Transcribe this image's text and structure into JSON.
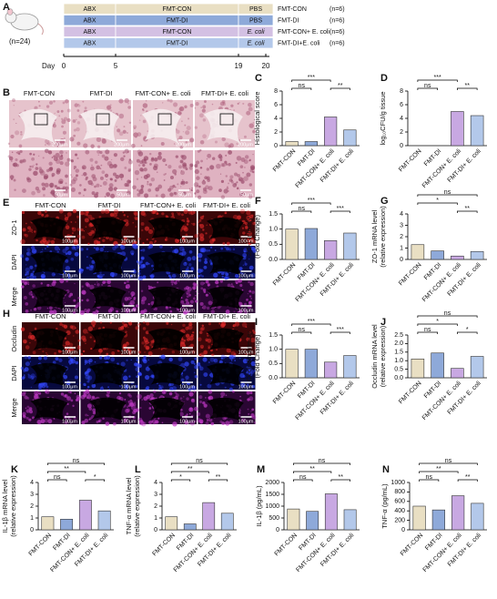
{
  "panel_A": {
    "label": "A",
    "n_total": "(n=24)",
    "rows": [
      {
        "segments": [
          "ABX",
          "FMT-CON",
          "PBS"
        ],
        "group": "FMT-CON",
        "n": "(n=6)",
        "color": "#e9dfc3"
      },
      {
        "segments": [
          "ABX",
          "FMT-DI",
          "PBS"
        ],
        "group": "FMT-DI",
        "n": "(n=6)",
        "color": "#8ea9d9"
      },
      {
        "segments": [
          "ABX",
          "FMT-CON",
          "E. coli"
        ],
        "group": "FMT-CON+ E. coli",
        "n": "(n=6)",
        "color": "#d3c0e3"
      },
      {
        "segments": [
          "ABX",
          "FMT-DI",
          "E. coli"
        ],
        "group": "FMT-DI+E. coli",
        "n": "(n=6)",
        "color": "#b3c8ea"
      }
    ],
    "day_label": "Day",
    "days": [
      "0",
      "5",
      "19",
      "20"
    ]
  },
  "panel_B": {
    "label": "B",
    "columns": [
      "FMT-CON",
      "FMT-DI",
      "FMT-CON+ E. coli",
      "FMT-DI+ E. coli"
    ],
    "scales": [
      "200μm",
      "50μm"
    ]
  },
  "panel_E": {
    "label": "E",
    "columns": [
      "FMT-CON",
      "FMT-DI",
      "FMT-CON+ E. coli",
      "FMT-DI+ E. coli"
    ],
    "rows": [
      "ZO-1",
      "DAPI",
      "Merge"
    ],
    "scale": "100μm"
  },
  "panel_H": {
    "label": "H",
    "columns": [
      "FMT-CON",
      "FMT-DI",
      "FMT-CON+ E. coli",
      "FMT-DI+ E. coli"
    ],
    "rows": [
      "Occludin",
      "DAPI",
      "Merge"
    ],
    "scale": "100μm"
  },
  "chart_data": [
    {
      "type": "bar",
      "label": "C",
      "ylabel": [
        "Histological score"
      ],
      "categories": [
        "FMT-CON",
        "FMT-DI",
        "FMT-CON+ E. coli",
        "FMT-DI+ E. coli"
      ],
      "values": [
        0.6,
        0.6,
        4.2,
        2.3
      ],
      "colors": [
        "#e9dfc3",
        "#8ea9d9",
        "#c8a8e2",
        "#b3c8ea"
      ],
      "ylim": [
        0,
        8
      ],
      "yticks": [
        0,
        2,
        4,
        6,
        8
      ],
      "comparisons": [
        {
          "from": "FMT-CON",
          "to": "FMT-DI",
          "label": "ns"
        },
        {
          "from": "FMT-CON+ E. coli",
          "to": "FMT-DI+ E. coli",
          "label": "**"
        },
        {
          "from": "FMT-CON",
          "to": "FMT-CON+ E. coli",
          "label": "***"
        }
      ]
    },
    {
      "type": "bar",
      "label": "D",
      "ylabel": [
        "log₁₀CFU/g tissue"
      ],
      "categories": [
        "FMT-CON",
        "FMT-DI",
        "FMT-CON+ E. coli",
        "FMT-DI+ E. coli"
      ],
      "values": [
        0,
        0,
        5,
        4.4
      ],
      "colors": [
        "#e9dfc3",
        "#8ea9d9",
        "#c8a8e2",
        "#b3c8ea"
      ],
      "ylim": [
        0,
        8
      ],
      "yticks": [
        0,
        2,
        4,
        6,
        8
      ],
      "comparisons": [
        {
          "from": "FMT-CON",
          "to": "FMT-DI",
          "label": "ns"
        },
        {
          "from": "FMT-CON+ E. coli",
          "to": "FMT-DI+ E. coli",
          "label": "**"
        },
        {
          "from": "FMT-CON",
          "to": "FMT-CON+ E. coli",
          "label": "***"
        }
      ]
    },
    {
      "type": "bar",
      "label": "F",
      "ylabel": [
        "ZO-1 intesity",
        "(Fold Change)"
      ],
      "categories": [
        "FMT-CON",
        "FMT-DI",
        "FMT-CON+ E. coli",
        "FMT-DI+ E. coli"
      ],
      "values": [
        1.0,
        1.02,
        0.62,
        0.87
      ],
      "colors": [
        "#e9dfc3",
        "#8ea9d9",
        "#c8a8e2",
        "#b3c8ea"
      ],
      "ylim": [
        0,
        1.5
      ],
      "yticks": [
        {
          "value": 0,
          "label": "0.0"
        },
        0.5,
        {
          "value": 1,
          "label": "1.0"
        },
        1.5
      ],
      "comparisons": [
        {
          "from": "FMT-CON",
          "to": "FMT-DI",
          "label": "ns"
        },
        {
          "from": "FMT-CON+ E. coli",
          "to": "FMT-DI+ E. coli",
          "label": "***"
        },
        {
          "from": "FMT-CON",
          "to": "FMT-CON+ E. coli",
          "label": "***"
        }
      ]
    },
    {
      "type": "bar",
      "label": "G",
      "ylabel": [
        "ZO-1 mRNA level",
        "(relative expression)"
      ],
      "categories": [
        "FMT-CON",
        "FMT-DI",
        "FMT-CON+ E. coli",
        "FMT-DI+ E. coli"
      ],
      "values": [
        1.3,
        0.75,
        0.3,
        0.7
      ],
      "colors": [
        "#e9dfc3",
        "#8ea9d9",
        "#c8a8e2",
        "#b3c8ea"
      ],
      "ylim": [
        0,
        4
      ],
      "yticks": [
        0,
        1,
        2,
        3,
        4
      ],
      "comparisons": [
        {
          "from": "FMT-CON+ E. coli",
          "to": "FMT-DI+ E. coli",
          "label": "**"
        },
        {
          "from": "FMT-CON",
          "to": "FMT-CON+ E. coli",
          "label": "*"
        },
        {
          "from": "FMT-CON",
          "to": "FMT-DI+ E. coli",
          "label": "ns"
        }
      ]
    },
    {
      "type": "bar",
      "label": "I",
      "ylabel": [
        "Occludin intesity",
        "(Fold Change)"
      ],
      "categories": [
        "FMT-CON",
        "FMT-DI",
        "FMT-CON+ E. coli",
        "FMT-DI+ E. coli"
      ],
      "values": [
        1.0,
        1.0,
        0.55,
        0.78
      ],
      "colors": [
        "#e9dfc3",
        "#8ea9d9",
        "#c8a8e2",
        "#b3c8ea"
      ],
      "ylim": [
        0,
        1.5
      ],
      "yticks": [
        {
          "value": 0,
          "label": "0.0"
        },
        0.5,
        {
          "value": 1,
          "label": "1.0"
        },
        1.5
      ],
      "comparisons": [
        {
          "from": "FMT-CON",
          "to": "FMT-DI",
          "label": "ns"
        },
        {
          "from": "FMT-CON+ E. coli",
          "to": "FMT-DI+ E. coli",
          "label": "***"
        },
        {
          "from": "FMT-CON",
          "to": "FMT-CON+ E. coli",
          "label": "***"
        }
      ]
    },
    {
      "type": "bar",
      "label": "J",
      "ylabel": [
        "Occludin mRNA level",
        "(relative expression)"
      ],
      "categories": [
        "FMT-CON",
        "FMT-DI",
        "FMT-CON+ E. coli",
        "FMT-DI+ E. coli"
      ],
      "values": [
        1.1,
        1.45,
        0.55,
        1.25
      ],
      "colors": [
        "#e9dfc3",
        "#8ea9d9",
        "#c8a8e2",
        "#b3c8ea"
      ],
      "ylim": [
        0,
        2.5
      ],
      "yticks": [
        {
          "value": 0,
          "label": "0.0"
        },
        0.5,
        {
          "value": 1,
          "label": "1.0"
        },
        1.5,
        {
          "value": 2,
          "label": "2.0"
        },
        2.5
      ],
      "comparisons": [
        {
          "from": "FMT-CON",
          "to": "FMT-DI",
          "label": "ns"
        },
        {
          "from": "FMT-CON+ E. coli",
          "to": "FMT-DI+ E. coli",
          "label": "*"
        },
        {
          "from": "FMT-CON",
          "to": "FMT-CON+ E. coli",
          "label": "*"
        },
        {
          "from": "FMT-CON",
          "to": "FMT-DI+ E. coli",
          "label": "ns"
        }
      ]
    },
    {
      "type": "bar",
      "label": "K",
      "ylabel": [
        "IL-1β mRNA level",
        "(relative expression)"
      ],
      "categories": [
        "FMT-CON",
        "FMT-DI",
        "FMT-CON+ E. coli",
        "FMT-DI+ E. coli"
      ],
      "values": [
        1.1,
        0.9,
        2.5,
        1.6
      ],
      "colors": [
        "#e9dfc3",
        "#8ea9d9",
        "#c8a8e2",
        "#b3c8ea"
      ],
      "ylim": [
        0,
        4
      ],
      "yticks": [
        0,
        1,
        2,
        3,
        4
      ],
      "comparisons": [
        {
          "from": "FMT-CON",
          "to": "FMT-DI",
          "label": "ns"
        },
        {
          "from": "FMT-CON+ E. coli",
          "to": "FMT-DI+ E. coli",
          "label": "*"
        },
        {
          "from": "FMT-CON",
          "to": "FMT-CON+ E. coli",
          "label": "**"
        },
        {
          "from": "FMT-CON",
          "to": "FMT-DI+ E. coli",
          "label": "ns"
        }
      ]
    },
    {
      "type": "bar",
      "label": "L",
      "ylabel": [
        "TNF-α mRNA level",
        "(relative expression)"
      ],
      "categories": [
        "FMT-CON",
        "FMT-DI",
        "FMT-CON+ E. coli",
        "FMT-DI+ E. coli"
      ],
      "values": [
        1.1,
        0.5,
        2.3,
        1.4
      ],
      "colors": [
        "#e9dfc3",
        "#8ea9d9",
        "#c8a8e2",
        "#b3c8ea"
      ],
      "ylim": [
        0,
        4
      ],
      "yticks": [
        0,
        1,
        2,
        3,
        4
      ],
      "comparisons": [
        {
          "from": "FMT-CON",
          "to": "FMT-DI",
          "label": "*"
        },
        {
          "from": "FMT-CON+ E. coli",
          "to": "FMT-DI+ E. coli",
          "label": "**"
        },
        {
          "from": "FMT-CON",
          "to": "FMT-CON+ E. coli",
          "label": "**"
        },
        {
          "from": "FMT-CON",
          "to": "FMT-DI+ E. coli",
          "label": "ns"
        }
      ]
    },
    {
      "type": "bar",
      "label": "M",
      "ylabel": [
        "IL-1β (pg/mL)"
      ],
      "categories": [
        "FMT-CON",
        "FMT-DI",
        "FMT-CON+ E. coli",
        "FMT-DI+ E. coli"
      ],
      "values": [
        880,
        780,
        1520,
        850
      ],
      "colors": [
        "#e9dfc3",
        "#8ea9d9",
        "#c8a8e2",
        "#b3c8ea"
      ],
      "ylim": [
        0,
        2000
      ],
      "yticks": [
        0,
        500,
        1000,
        1500,
        2000
      ],
      "comparisons": [
        {
          "from": "FMT-CON",
          "to": "FMT-DI",
          "label": "ns"
        },
        {
          "from": "FMT-CON+ E. coli",
          "to": "FMT-DI+ E. coli",
          "label": "**"
        },
        {
          "from": "FMT-CON",
          "to": "FMT-CON+ E. coli",
          "label": "**"
        },
        {
          "from": "FMT-CON",
          "to": "FMT-DI+ E. coli",
          "label": "ns"
        }
      ]
    },
    {
      "type": "bar",
      "label": "N",
      "ylabel": [
        "TNF-α (pg/mL)"
      ],
      "categories": [
        "FMT-CON",
        "FMT-DI",
        "FMT-CON+ E. coli",
        "FMT-DI+ E. coli"
      ],
      "values": [
        500,
        420,
        720,
        560
      ],
      "colors": [
        "#e9dfc3",
        "#8ea9d9",
        "#c8a8e2",
        "#b3c8ea"
      ],
      "ylim": [
        0,
        1000
      ],
      "yticks": [
        0,
        200,
        400,
        600,
        800,
        1000
      ],
      "comparisons": [
        {
          "from": "FMT-CON",
          "to": "FMT-DI",
          "label": "ns"
        },
        {
          "from": "FMT-CON+ E. coli",
          "to": "FMT-DI+ E. coli",
          "label": "**"
        },
        {
          "from": "FMT-CON",
          "to": "FMT-CON+ E. coli",
          "label": "**"
        },
        {
          "from": "FMT-CON",
          "to": "FMT-DI+ E. coli",
          "label": "ns"
        }
      ]
    }
  ]
}
